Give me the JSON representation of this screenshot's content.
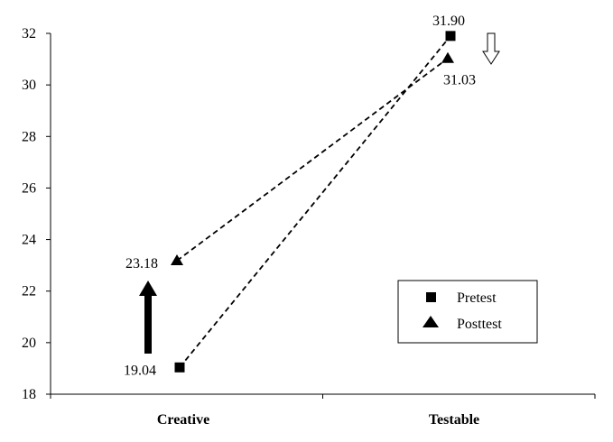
{
  "chart_data": {
    "type": "line",
    "categories": [
      "Creative",
      "Testable"
    ],
    "series": [
      {
        "name": "Pretest",
        "marker": "square",
        "values": [
          19.04,
          31.9
        ]
      },
      {
        "name": "Posttest",
        "marker": "triangle",
        "values": [
          23.18,
          31.03
        ]
      }
    ],
    "data_labels": {
      "Pretest": [
        "19.04",
        "31.90"
      ],
      "Posttest": [
        "23.18",
        "31.03"
      ]
    },
    "ylim": [
      18,
      32
    ],
    "yticks": [
      18,
      20,
      22,
      24,
      26,
      28,
      30,
      32
    ],
    "ytick_labels": [
      "18",
      "20",
      "22",
      "24",
      "26",
      "28",
      "30",
      "32"
    ],
    "xlabel": "",
    "ylabel": "",
    "title": "",
    "grid": false,
    "legend_position": "bottom-right",
    "line_style": "dashed",
    "change_arrows": [
      {
        "category": "Creative",
        "direction": "up",
        "style": "filled"
      },
      {
        "category": "Testable",
        "direction": "down",
        "style": "outline"
      }
    ],
    "colors": {
      "series": "#000000",
      "background": "#ffffff"
    }
  }
}
